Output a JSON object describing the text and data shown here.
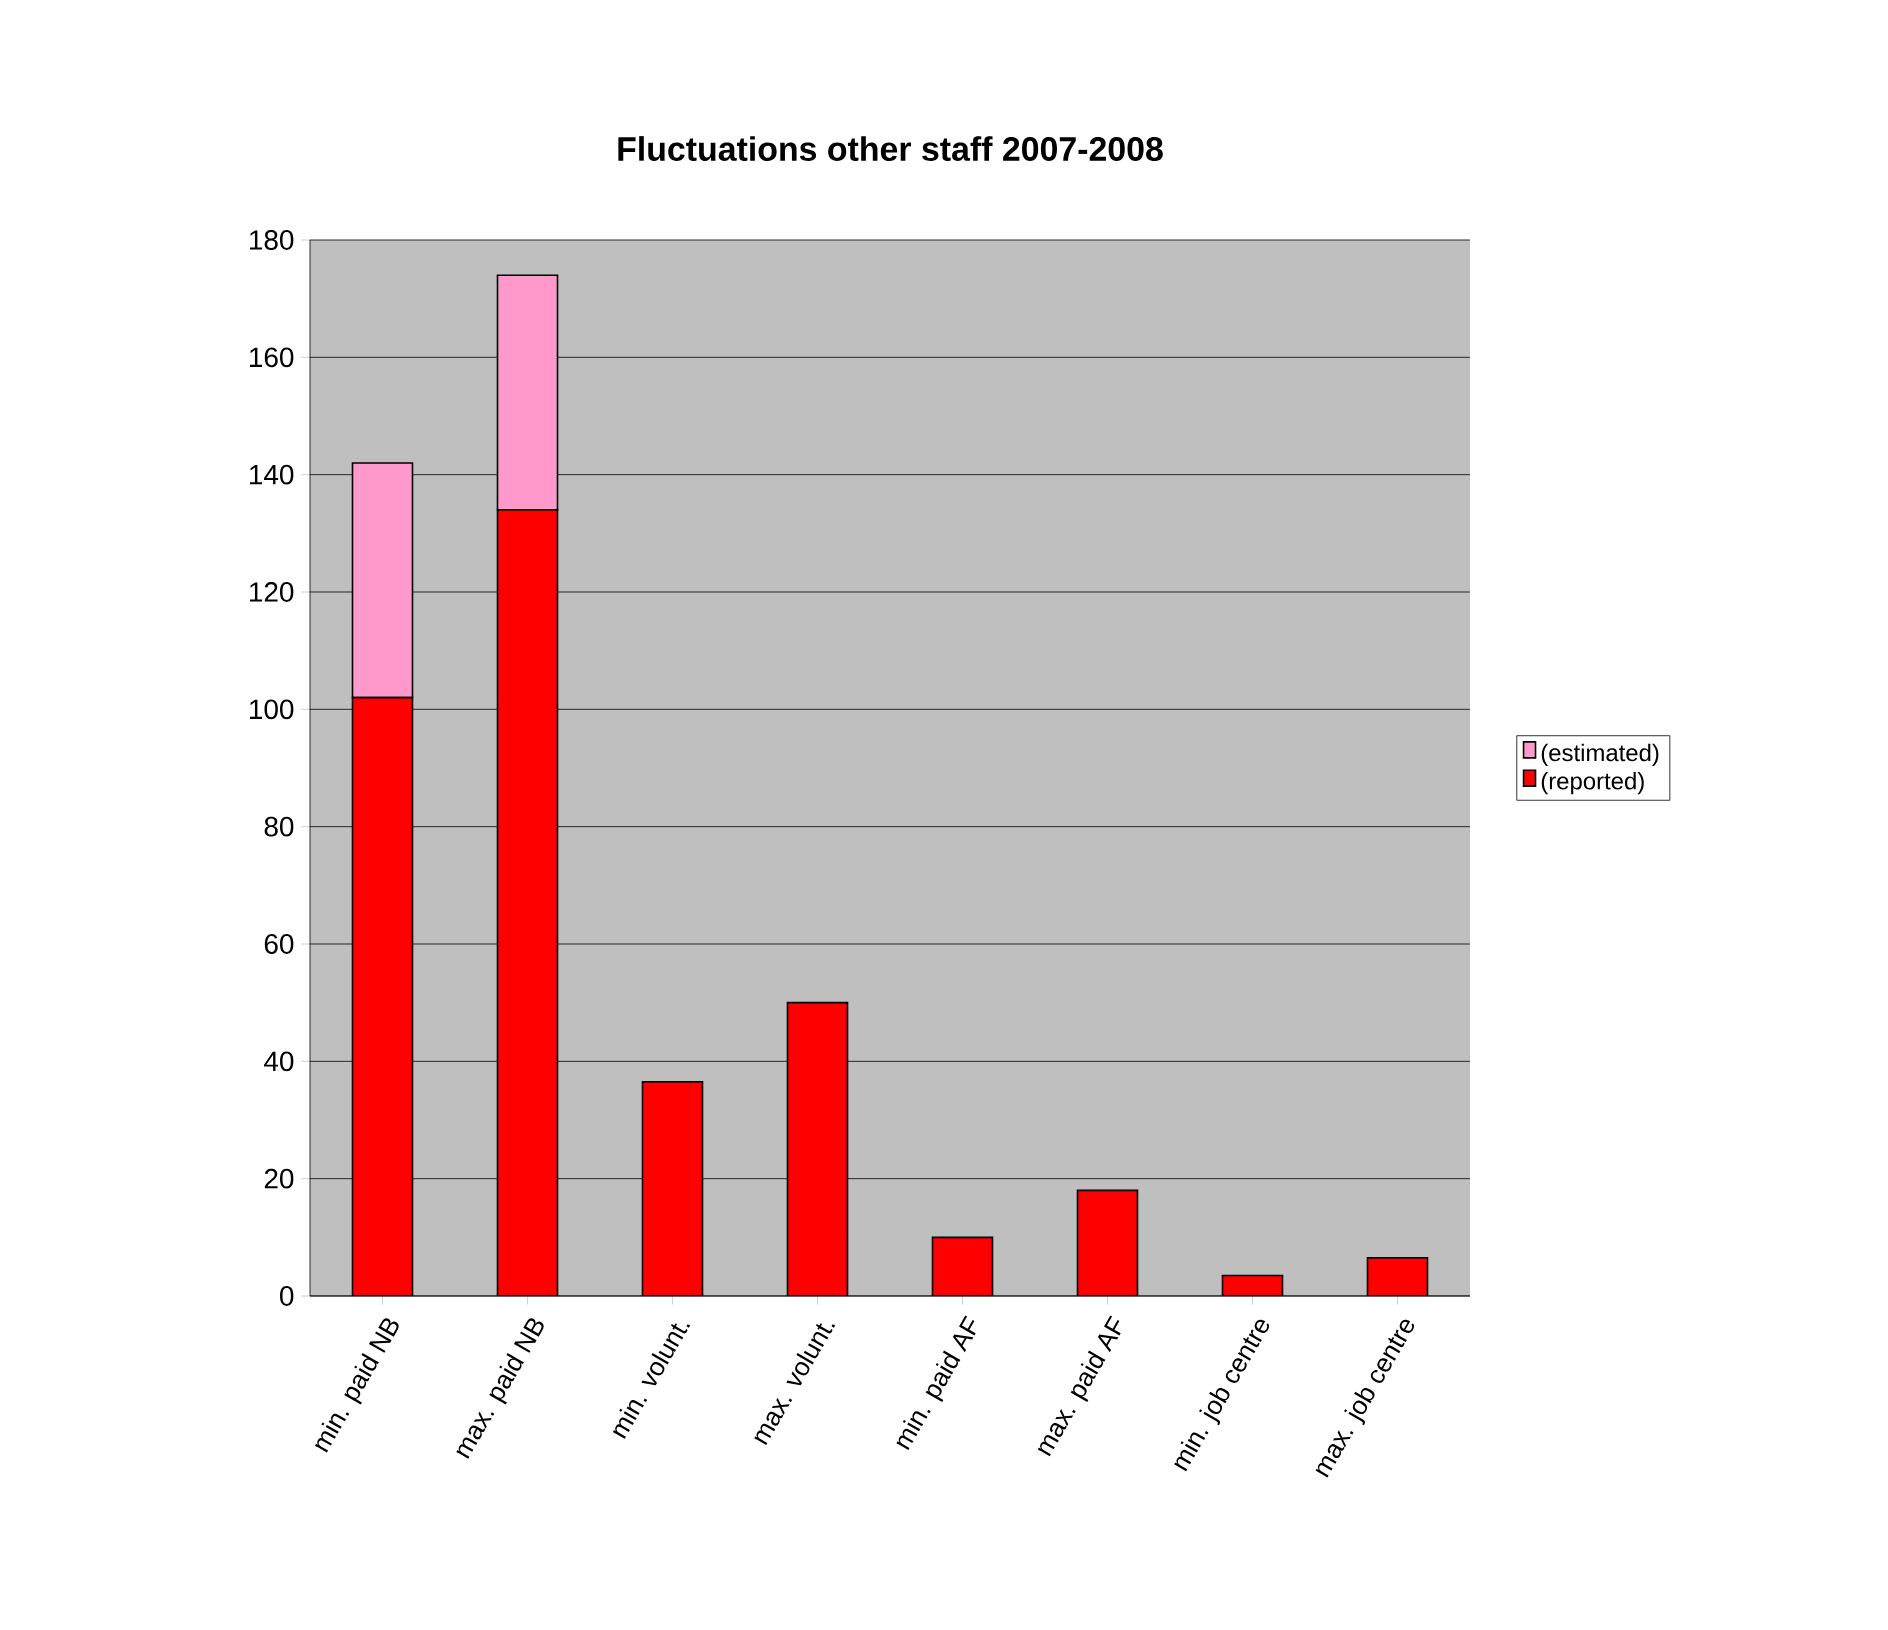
{
  "chart_data": {
    "type": "bar",
    "title": "Fluctuations other staff 2007-2008",
    "stacked": true,
    "categories": [
      "min. paid NB",
      "max. paid NB",
      "min. volunt.",
      "max. volunt.",
      "min. paid AF",
      "max. paid AF",
      "min. job centre",
      "max. job centre"
    ],
    "series": [
      {
        "name": "(reported)",
        "color": "#ff0000",
        "values": [
          102,
          134,
          36.5,
          50,
          10,
          18,
          3.5,
          6.5
        ]
      },
      {
        "name": "(estimated)",
        "color": "#ff99cc",
        "values": [
          40,
          40,
          null,
          null,
          null,
          null,
          null,
          null
        ]
      }
    ],
    "ylim": [
      0,
      180
    ],
    "yticks": [
      0,
      20,
      40,
      60,
      80,
      100,
      120,
      140,
      160,
      180
    ],
    "grid": "y",
    "legend": "right"
  }
}
